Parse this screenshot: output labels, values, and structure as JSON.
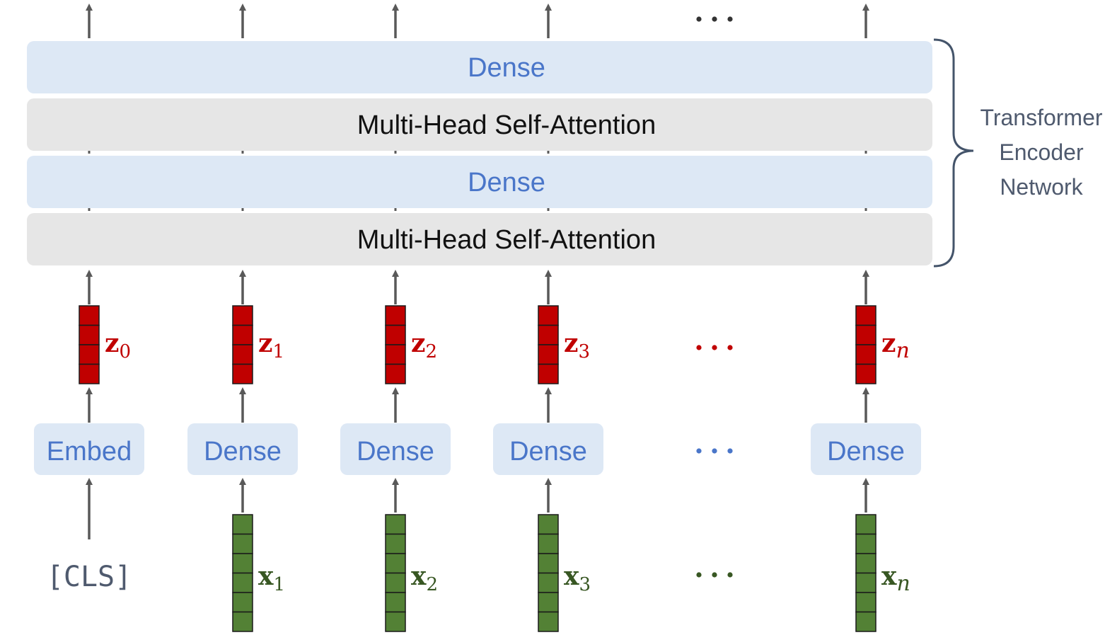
{
  "encoder": {
    "layers": [
      {
        "label": "Dense",
        "kind": "dense"
      },
      {
        "label": "Multi-Head Self-Attention",
        "kind": "attention"
      },
      {
        "label": "Dense",
        "kind": "dense"
      },
      {
        "label": "Multi-Head Self-Attention",
        "kind": "attention"
      }
    ],
    "brace_label": [
      "Transformer",
      "Encoder",
      "Network"
    ]
  },
  "columns": [
    {
      "input_token": "[CLS]",
      "input_letter": "",
      "input_sub": "",
      "embed_label": "Embed",
      "z_letter": "z",
      "z_sub": "0",
      "sub_italic": false
    },
    {
      "input_token": "",
      "input_letter": "x",
      "input_sub": "1",
      "embed_label": "Dense",
      "z_letter": "z",
      "z_sub": "1",
      "sub_italic": false
    },
    {
      "input_token": "",
      "input_letter": "x",
      "input_sub": "2",
      "embed_label": "Dense",
      "z_letter": "z",
      "z_sub": "2",
      "sub_italic": false
    },
    {
      "input_token": "",
      "input_letter": "x",
      "input_sub": "3",
      "embed_label": "Dense",
      "z_letter": "z",
      "z_sub": "3",
      "sub_italic": false
    },
    {
      "input_token": "",
      "input_letter": "x",
      "input_sub": "n",
      "embed_label": "Dense",
      "z_letter": "z",
      "z_sub": "n",
      "sub_italic": true
    }
  ],
  "ellipsis": "···",
  "colors": {
    "dense_fill": "#dde8f5",
    "attention_fill": "#e6e6e6",
    "dense_text": "#4a76c9",
    "attention_text": "#111111",
    "z_vector": "#c00000",
    "z_text": "#c00000",
    "x_vector": "#538135",
    "x_text": "#385723",
    "arrow": "#595959",
    "brace": "#44546a",
    "label": "#4f5a6e"
  }
}
